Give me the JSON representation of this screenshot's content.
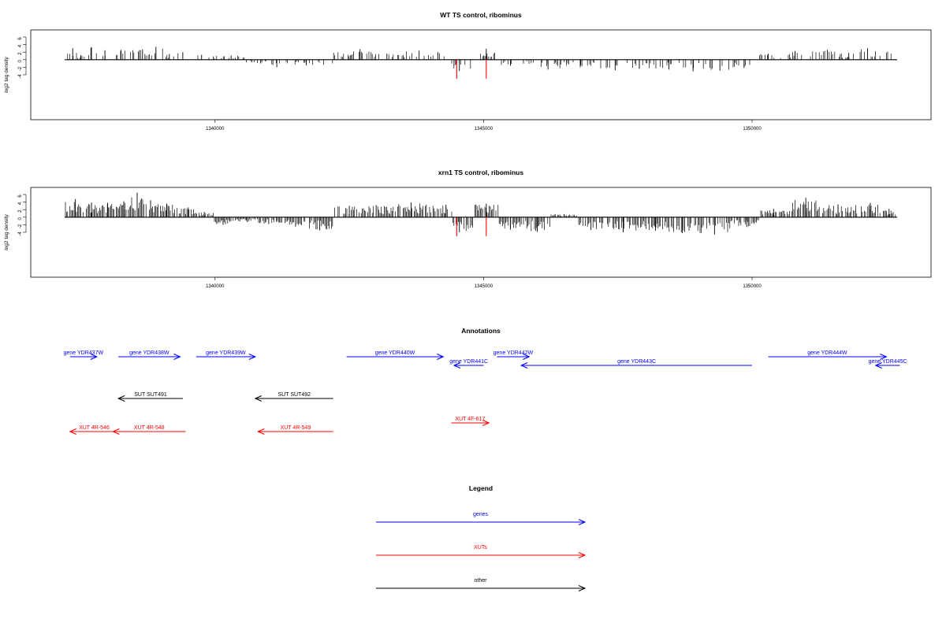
{
  "colors": {
    "genes": "#0000ff",
    "xuts": "#ff0000",
    "other": "#000000",
    "highlight": "#ff0000",
    "bars": "#000000"
  },
  "chart_data": [
    {
      "type": "bar",
      "title": "WT TS control, ribominus",
      "ylabel": "log2 tag density",
      "xlim": [
        1337200,
        1352700
      ],
      "ylim": [
        -5,
        7
      ],
      "yticks": [
        "6",
        "4",
        "2",
        "0",
        "-2",
        "-4"
      ],
      "yticks_values": [
        6,
        4,
        2,
        0,
        -2,
        -4
      ],
      "xticks": [
        "1340000",
        "1345000",
        "1350000"
      ],
      "xticks_values": [
        1340000,
        1345000,
        1350000
      ],
      "series": [
        {
          "values": [
            [
              1337350,
              3.0
            ],
            [
              1337500,
              1.2
            ],
            [
              1337700,
              3.3
            ],
            [
              1337950,
              2.5
            ],
            [
              1338250,
              2.6
            ],
            [
              1338650,
              2.7
            ],
            [
              1338900,
              3.4
            ],
            [
              1339150,
              1.5
            ],
            [
              1339400,
              2.0
            ],
            [
              1339750,
              1.3
            ],
            [
              1340300,
              1.1
            ],
            [
              1340850,
              -1.0
            ],
            [
              1341150,
              -2.0
            ],
            [
              1341700,
              -1.5
            ],
            [
              1342700,
              2.8
            ],
            [
              1343200,
              1.6
            ],
            [
              1343800,
              2.4
            ],
            [
              1344150,
              2.0
            ],
            [
              1344550,
              -3.0
            ],
            [
              1345050,
              2.9
            ],
            [
              1345500,
              -1.6
            ],
            [
              1346200,
              -2.6
            ],
            [
              1346800,
              -2.0
            ],
            [
              1347450,
              -2.8
            ],
            [
              1347900,
              -2.4
            ],
            [
              1348450,
              -2.6
            ],
            [
              1348900,
              -3.1
            ],
            [
              1349400,
              -2.9
            ],
            [
              1349850,
              -2.2
            ],
            [
              1350300,
              1.6
            ],
            [
              1350800,
              2.3
            ],
            [
              1351400,
              2.6
            ],
            [
              1351800,
              1.8
            ],
            [
              1352150,
              3.0
            ]
          ]
        }
      ],
      "highlights": [
        [
          1344500,
          -5.0
        ],
        [
          1345050,
          -5.0
        ]
      ]
    },
    {
      "type": "bar",
      "title": "xrn1 TS control, ribominus",
      "ylabel": "log2 tag density",
      "xlim": [
        1337200,
        1352700
      ],
      "ylim": [
        -5,
        7
      ],
      "yticks": [
        "6",
        "4",
        "2",
        "0",
        "-2",
        "-4"
      ],
      "yticks_values": [
        6,
        4,
        2,
        0,
        -2,
        -4
      ],
      "xticks": [
        "1340000",
        "1345000",
        "1350000"
      ],
      "xticks_values": [
        1340000,
        1345000,
        1350000
      ],
      "series": [
        {
          "values": [
            [
              1337400,
              4.8
            ],
            [
              1337700,
              3.9
            ],
            [
              1338000,
              3.8
            ],
            [
              1338300,
              4.2
            ],
            [
              1338550,
              6.5
            ],
            [
              1338800,
              4.5
            ],
            [
              1339100,
              3.6
            ],
            [
              1339500,
              2.6
            ],
            [
              1339800,
              1.4
            ],
            [
              1340150,
              -2.0
            ],
            [
              1340600,
              -1.3
            ],
            [
              1341000,
              -1.8
            ],
            [
              1341500,
              -2.5
            ],
            [
              1341950,
              -3.5
            ],
            [
              1342500,
              3.0
            ],
            [
              1343000,
              3.2
            ],
            [
              1343650,
              3.9
            ],
            [
              1344300,
              3.3
            ],
            [
              1344550,
              -4.0
            ],
            [
              1345050,
              3.6
            ],
            [
              1345500,
              -3.3
            ],
            [
              1346000,
              -3.9
            ],
            [
              1346500,
              0.8
            ],
            [
              1347000,
              -3.4
            ],
            [
              1347600,
              -4.0
            ],
            [
              1348200,
              -3.6
            ],
            [
              1348700,
              -4.2
            ],
            [
              1349300,
              -4.6
            ],
            [
              1349900,
              -2.6
            ],
            [
              1350400,
              2.2
            ],
            [
              1351000,
              5.1
            ],
            [
              1351600,
              3.4
            ],
            [
              1352200,
              3.8
            ],
            [
              1352550,
              2.2
            ]
          ]
        }
      ],
      "highlights": [
        [
          1344500,
          -5.0
        ],
        [
          1345050,
          -5.0
        ]
      ]
    }
  ],
  "annotations": {
    "title": "Annotations",
    "features": [
      {
        "label": "gene YDR437W",
        "kind": "genes",
        "strand": "+",
        "start": 1337300,
        "end": 1337800,
        "row": 1
      },
      {
        "label": "gene YDR438W",
        "kind": "genes",
        "strand": "+",
        "start": 1338200,
        "end": 1339350,
        "row": 1
      },
      {
        "label": "gene YDR439W",
        "kind": "genes",
        "strand": "+",
        "start": 1339650,
        "end": 1340750,
        "row": 1
      },
      {
        "label": "gene YDR440W",
        "kind": "genes",
        "strand": "+",
        "start": 1342450,
        "end": 1344250,
        "row": 1
      },
      {
        "label": "gene YDR441C",
        "kind": "genes",
        "strand": "-",
        "start": 1344450,
        "end": 1345000,
        "row": 2
      },
      {
        "label": "gene YDR442W",
        "kind": "genes",
        "strand": "+",
        "start": 1345250,
        "end": 1345850,
        "row": 1
      },
      {
        "label": "gene YDR443C",
        "kind": "genes",
        "strand": "-",
        "start": 1345700,
        "end": 1350000,
        "row": 2
      },
      {
        "label": "gene YDR444W",
        "kind": "genes",
        "strand": "+",
        "start": 1350300,
        "end": 1352500,
        "row": 1
      },
      {
        "label": "gene YDR445C",
        "kind": "genes",
        "strand": "-",
        "start": 1352300,
        "end": 1352750,
        "row": 2
      },
      {
        "label": "SUT SUT491",
        "kind": "other",
        "strand": "-",
        "start": 1338200,
        "end": 1339400,
        "row": 3
      },
      {
        "label": "SUT SUT492",
        "kind": "other",
        "strand": "-",
        "start": 1340750,
        "end": 1342200,
        "row": 3
      },
      {
        "label": "XUT 4R-546",
        "kind": "xuts",
        "strand": "-",
        "start": 1337300,
        "end": 1338200,
        "row": 5
      },
      {
        "label": "XUT 4R-548",
        "kind": "xuts",
        "strand": "-",
        "start": 1338100,
        "end": 1339450,
        "row": 5
      },
      {
        "label": "XUT 4R-549",
        "kind": "xuts",
        "strand": "-",
        "start": 1340800,
        "end": 1342200,
        "row": 5
      },
      {
        "label": "XUT 4F-617",
        "kind": "xuts",
        "strand": "+",
        "start": 1344400,
        "end": 1345100,
        "row": 4
      }
    ]
  },
  "legend": {
    "title": "Legend",
    "items": [
      {
        "label": "genes",
        "kind": "genes"
      },
      {
        "label": "XUTs",
        "kind": "xuts"
      },
      {
        "label": "other",
        "kind": "other"
      }
    ]
  }
}
